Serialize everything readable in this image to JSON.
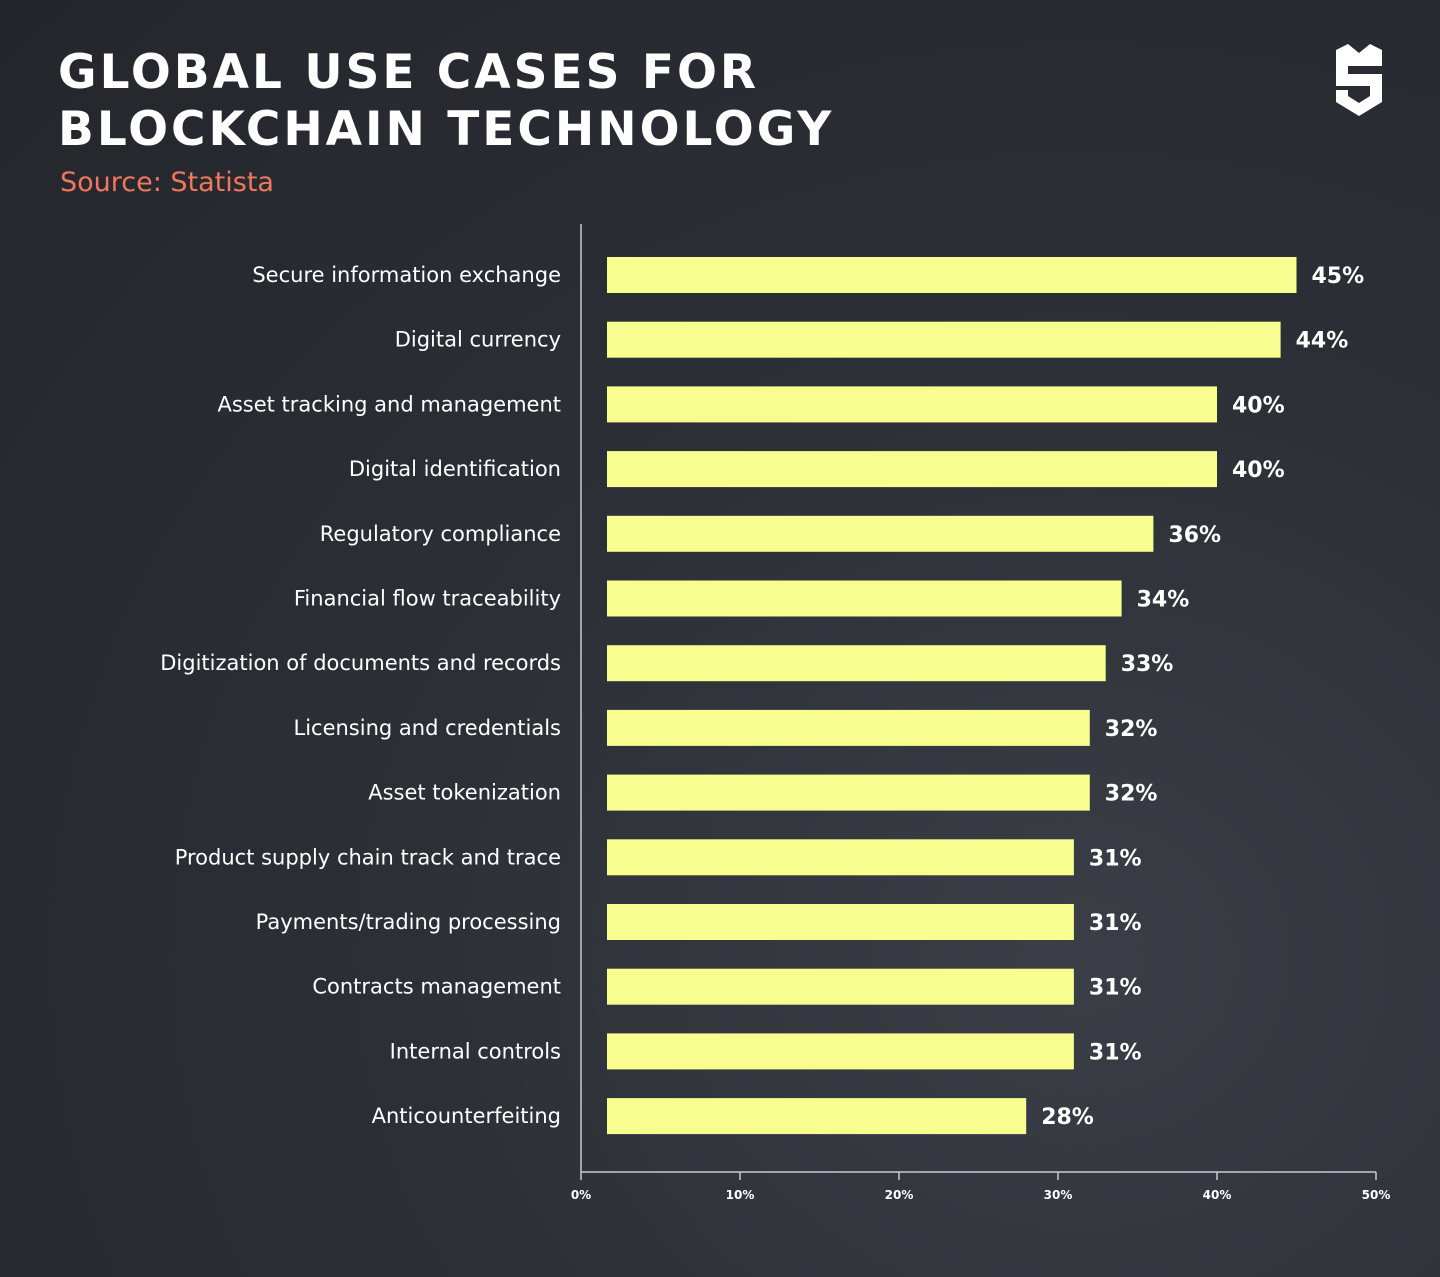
{
  "header": {
    "title": "GLOBAL USE CASES FOR BLOCKCHAIN TECHNOLOGY",
    "source": "Source: Statista",
    "logo_icon": "shield-s-logo-icon"
  },
  "colors": {
    "background": "#2c2f36",
    "bar": "#f7fd8f",
    "source_text": "#f0775c",
    "axis": "#c9cacd"
  },
  "chart_data": {
    "type": "bar",
    "orientation": "horizontal",
    "categories": [
      "Secure information exchange",
      "Digital currency",
      "Asset tracking and management",
      "Digital identification",
      "Regulatory compliance",
      "Financial flow traceability",
      "Digitization of documents and records",
      "Licensing and credentials",
      "Asset tokenization",
      "Product supply chain track and trace",
      "Payments/trading processing",
      "Contracts management",
      "Internal controls",
      "Anticounterfeiting"
    ],
    "values": [
      45,
      44,
      40,
      40,
      36,
      34,
      33,
      32,
      32,
      31,
      31,
      31,
      31,
      28
    ],
    "value_labels": [
      "45%",
      "44%",
      "40%",
      "40%",
      "36%",
      "34%",
      "33%",
      "32%",
      "32%",
      "31%",
      "31%",
      "31%",
      "31%",
      "28%"
    ],
    "xlim": [
      0,
      50
    ],
    "xticks": [
      0,
      10,
      20,
      30,
      40,
      50
    ],
    "xtick_labels": [
      "0%",
      "10%",
      "20%",
      "30%",
      "40%",
      "50%"
    ],
    "grid": false,
    "legend": "none"
  }
}
